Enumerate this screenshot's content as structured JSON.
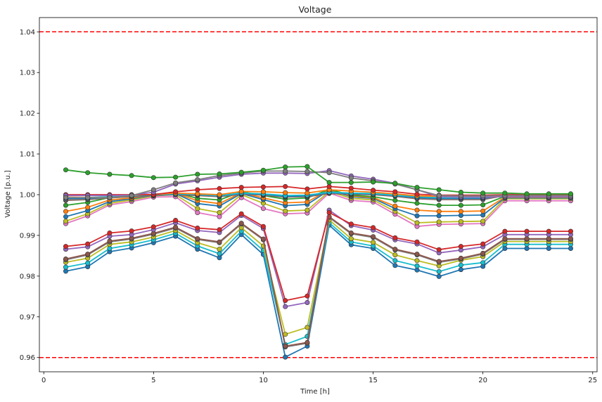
{
  "chart_data": {
    "type": "line",
    "title": "Voltage",
    "xlabel": "Time [h]",
    "ylabel": "Voltage [p.u.]",
    "xlim": [
      -0.2,
      25.2
    ],
    "ylim": [
      0.9565,
      1.0435
    ],
    "x_ticks": [
      0,
      5,
      10,
      15,
      20,
      25
    ],
    "y_ticks": [
      0.96,
      0.97,
      0.98,
      0.99,
      1.0,
      1.01,
      1.02,
      1.03,
      1.04
    ],
    "x_tick_labels": [
      "0",
      "5",
      "10",
      "15",
      "20",
      "25"
    ],
    "y_tick_labels": [
      "0.96",
      "0.97",
      "0.98",
      "0.99",
      "1.00",
      "1.01",
      "1.02",
      "1.03",
      "1.04"
    ],
    "limits": [
      {
        "value": 1.04,
        "color": "#ff0000",
        "style": "dashed"
      },
      {
        "value": 0.96,
        "color": "#ff0000",
        "style": "dashed"
      }
    ],
    "x": [
      1,
      2,
      3,
      4,
      5,
      6,
      7,
      8,
      9,
      10,
      11,
      12,
      13,
      14,
      15,
      16,
      17,
      18,
      19,
      20,
      21,
      22,
      23,
      24
    ],
    "series": [
      {
        "color": "#1f77b4",
        "values": [
          0.9812,
          0.9823,
          0.986,
          0.9869,
          0.9882,
          0.9898,
          0.9866,
          0.9845,
          0.9902,
          0.9853,
          0.9601,
          0.9628,
          0.9925,
          0.9877,
          0.9868,
          0.9826,
          0.9815,
          0.9799,
          0.9816,
          0.9824,
          0.9868,
          0.9868,
          0.9868,
          0.9868
        ]
      },
      {
        "color": "#17becf",
        "values": [
          0.9822,
          0.9832,
          0.9868,
          0.9877,
          0.9889,
          0.9905,
          0.9874,
          0.9855,
          0.991,
          0.9863,
          0.9632,
          0.9652,
          0.9931,
          0.9884,
          0.9874,
          0.9838,
          0.9825,
          0.9811,
          0.9827,
          0.9833,
          0.9878,
          0.9878,
          0.9878,
          0.9878
        ]
      },
      {
        "color": "#bcbd22",
        "values": [
          0.9834,
          0.9844,
          0.9878,
          0.9884,
          0.9896,
          0.9912,
          0.9882,
          0.9866,
          0.9919,
          0.9874,
          0.9657,
          0.9674,
          0.9938,
          0.9892,
          0.9883,
          0.9852,
          0.9838,
          0.9825,
          0.9839,
          0.9848,
          0.9885,
          0.9885,
          0.9885,
          0.9885
        ]
      },
      {
        "color": "#7f7f7f",
        "values": [
          0.984,
          0.9852,
          0.9884,
          0.9891,
          0.9903,
          0.9918,
          0.989,
          0.9882,
          0.9928,
          0.9889,
          0.9626,
          0.9635,
          0.9944,
          0.9904,
          0.9895,
          0.9864,
          0.9852,
          0.9834,
          0.9842,
          0.9854,
          0.989,
          0.989,
          0.989,
          0.989
        ]
      },
      {
        "color": "#8c564b",
        "values": [
          0.9842,
          0.9854,
          0.9886,
          0.9893,
          0.9905,
          0.992,
          0.9892,
          0.9884,
          0.993,
          0.9891,
          0.9628,
          0.9637,
          0.9946,
          0.9906,
          0.9897,
          0.9866,
          0.9854,
          0.9836,
          0.9844,
          0.9856,
          0.9892,
          0.9892,
          0.9892,
          0.9892
        ]
      },
      {
        "color": "#9467bd",
        "values": [
          0.9866,
          0.9872,
          0.9898,
          0.9902,
          0.9914,
          0.9931,
          0.9912,
          0.9907,
          0.9949,
          0.9917,
          0.9725,
          0.9735,
          0.9962,
          0.9924,
          0.9913,
          0.9889,
          0.9879,
          0.9857,
          0.9864,
          0.9872,
          0.9902,
          0.9902,
          0.9902,
          0.9902
        ]
      },
      {
        "color": "#d62728",
        "values": [
          0.9873,
          0.9879,
          0.9906,
          0.9911,
          0.9921,
          0.9937,
          0.9918,
          0.9914,
          0.9953,
          0.9922,
          0.974,
          0.9751,
          0.9956,
          0.9928,
          0.9919,
          0.9894,
          0.9884,
          0.9865,
          0.9873,
          0.9879,
          0.991,
          0.991,
          0.991,
          0.991
        ]
      },
      {
        "color": "#e377c2",
        "values": [
          0.9929,
          0.9948,
          0.9975,
          0.9983,
          0.9994,
          0.9995,
          0.9956,
          0.9946,
          0.9993,
          0.9966,
          0.9953,
          0.9955,
          1.0004,
          0.9986,
          0.9982,
          0.9952,
          0.9922,
          0.9927,
          0.9928,
          0.9929,
          0.9985,
          0.9985,
          0.9985,
          0.9985
        ]
      },
      {
        "color": "#bcbd22",
        "values": [
          0.9935,
          0.9953,
          0.9979,
          0.9987,
          0.9997,
          1.0,
          0.9966,
          0.9956,
          1.0,
          0.9979,
          0.996,
          0.9962,
          1.0008,
          0.9991,
          0.9987,
          0.9959,
          0.9931,
          0.9933,
          0.9934,
          0.9935,
          0.999,
          0.999,
          0.999,
          0.999
        ]
      },
      {
        "color": "#1f77b4",
        "values": [
          0.9946,
          0.9961,
          0.9983,
          0.999,
          0.9999,
          1.0003,
          0.9978,
          0.9972,
          1.0003,
          0.9988,
          0.9973,
          0.9976,
          1.0011,
          0.9995,
          0.9991,
          0.9966,
          0.9948,
          0.9948,
          0.9949,
          0.995,
          0.9992,
          0.9992,
          0.9992,
          0.9992
        ]
      },
      {
        "color": "#ff7f0e",
        "values": [
          0.9959,
          0.9969,
          0.9987,
          0.9992,
          1.0,
          1.0004,
          0.9985,
          0.9978,
          1.0005,
          0.9992,
          0.998,
          0.9982,
          1.0012,
          0.9997,
          0.9993,
          0.9972,
          0.9962,
          0.9959,
          0.9959,
          0.996,
          0.9994,
          0.9994,
          0.9994,
          0.9994
        ]
      },
      {
        "color": "#2ca02c",
        "values": [
          0.9974,
          0.9981,
          0.9993,
          0.9996,
          1.0001,
          1.0005,
          0.9991,
          0.9987,
          1.0007,
          0.9998,
          0.9989,
          0.9992,
          1.0013,
          0.9999,
          0.9995,
          0.9986,
          0.9979,
          0.9974,
          0.9974,
          0.9975,
          0.9996,
          0.9996,
          0.9996,
          0.9996
        ]
      },
      {
        "color": "#8c564b",
        "values": [
          0.9986,
          0.9988,
          0.9992,
          0.9995,
          0.9998,
          1.0,
          0.9998,
          0.9995,
          1.0001,
          0.9999,
          0.9994,
          0.9995,
          1.0003,
          1.0001,
          1.0,
          0.9996,
          0.999,
          0.9988,
          0.9988,
          0.9988,
          0.9998,
          0.9998,
          0.9998,
          0.9998
        ]
      },
      {
        "color": "#7f7f7f",
        "values": [
          0.9988,
          0.9989,
          0.9993,
          0.9996,
          0.9999,
          1.0001,
          0.9999,
          0.9996,
          1.0002,
          1.0,
          0.9995,
          0.9996,
          1.0004,
          1.0002,
          1.0001,
          0.9997,
          0.9991,
          0.9989,
          0.9989,
          0.9989,
          0.9999,
          0.9999,
          0.9999,
          0.9999
        ]
      },
      {
        "color": "#1f77b4",
        "values": [
          0.9991,
          0.9991,
          0.9994,
          0.9997,
          0.9999,
          1.0001,
          1.0,
          0.9997,
          1.0003,
          1.0001,
          0.9996,
          0.9997,
          1.0005,
          1.0003,
          1.0002,
          0.9998,
          0.9993,
          0.9991,
          0.9991,
          0.9991,
          0.9999,
          0.9999,
          0.9999,
          0.9999
        ]
      },
      {
        "color": "#17becf",
        "values": [
          0.9993,
          0.9993,
          0.9995,
          0.9998,
          1.0,
          1.0002,
          1.0001,
          0.9998,
          1.0004,
          1.0002,
          0.9998,
          0.9999,
          1.0006,
          1.0004,
          1.0003,
          0.9999,
          0.9995,
          0.9993,
          0.9993,
          0.9993,
          1.0,
          1.0,
          1.0,
          1.0
        ]
      },
      {
        "color": "#ff7f0e",
        "values": [
          0.9997,
          0.9998,
          0.9998,
          0.9999,
          1.0,
          1.0004,
          1.0002,
          1.0,
          1.0008,
          1.0007,
          1.0005,
          1.0004,
          1.0012,
          1.0009,
          1.0006,
          1.0002,
          0.9997,
          0.9996,
          0.9996,
          0.9996,
          0.9998,
          0.9998,
          0.9998,
          0.9998
        ]
      },
      {
        "color": "#d62728",
        "values": [
          1.0,
          1.0,
          1.0,
          1.0,
          1.0,
          1.0007,
          1.0012,
          1.0015,
          1.0018,
          1.0019,
          1.002,
          1.0014,
          1.002,
          1.0016,
          1.0011,
          1.0007,
          1.0001,
          0.9999,
          0.9999,
          0.9999,
          1.0,
          1.0,
          1.0,
          1.0
        ]
      },
      {
        "color": "#9467bd",
        "values": [
          0.9998,
          0.9998,
          0.9998,
          0.9999,
          1.0006,
          1.0026,
          1.0034,
          1.0043,
          1.005,
          1.0053,
          1.0053,
          1.0052,
          1.0059,
          1.0046,
          1.0038,
          1.0028,
          1.0012,
          0.9995,
          0.9994,
          0.9994,
          0.9995,
          0.9995,
          0.9995,
          0.9995
        ]
      },
      {
        "color": "#7f7f7f",
        "values": [
          0.9993,
          0.9993,
          0.9993,
          0.9998,
          1.0012,
          1.0029,
          1.0037,
          1.0047,
          1.0053,
          1.0058,
          1.0058,
          1.0057,
          1.0054,
          1.0041,
          1.0034,
          1.0026,
          1.0012,
          0.9998,
          0.9997,
          0.9997,
          0.9998,
          0.9998,
          0.9998,
          0.9998
        ]
      },
      {
        "color": "#2ca02c",
        "values": [
          1.0061,
          1.0054,
          1.005,
          1.0047,
          1.0042,
          1.0043,
          1.005,
          1.0051,
          1.0055,
          1.006,
          1.0068,
          1.0069,
          1.003,
          1.003,
          1.0031,
          1.0028,
          1.0018,
          1.0012,
          1.0006,
          1.0004,
          1.0004,
          1.0002,
          1.0002,
          1.0002
        ]
      }
    ]
  }
}
